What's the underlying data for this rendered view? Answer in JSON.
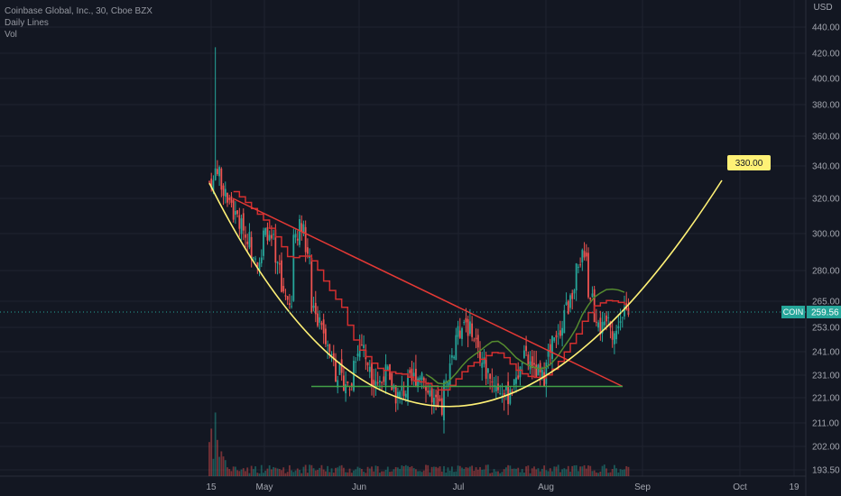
{
  "legend": {
    "title": "Coinbase Global, Inc., 30, Cboe BZX",
    "line2": "Daily Lines",
    "line3": "Vol"
  },
  "chart_data": {
    "type": "candlestick",
    "currency": "USD",
    "symbol": "COIN",
    "last_price": "259.56",
    "target_label": "330.00",
    "y_ticks": [
      "440.00",
      "420.00",
      "400.00",
      "380.00",
      "360.00",
      "340.00",
      "320.00",
      "300.00",
      "280.00",
      "265.00",
      "253.00",
      "241.00",
      "231.00",
      "221.00",
      "211.00",
      "202.00",
      "193.50"
    ],
    "x_ticks": [
      "15",
      "May",
      "Jun",
      "Jul",
      "Aug",
      "Sep",
      "Oct",
      "19"
    ],
    "price_range": [
      193.5,
      440
    ],
    "approx_closes": [
      330,
      338,
      325,
      318,
      310,
      305,
      298,
      290,
      285,
      300,
      296,
      282,
      270,
      262,
      300,
      305,
      290,
      262,
      255,
      248,
      240,
      232,
      228,
      226,
      240,
      245,
      236,
      230,
      228,
      232,
      226,
      222,
      224,
      228,
      230,
      232,
      224,
      218,
      216,
      226,
      240,
      250,
      256,
      252,
      246,
      236,
      232,
      228,
      224,
      222,
      226,
      232,
      238,
      236,
      232,
      230,
      240,
      246,
      252,
      262,
      270,
      280,
      290,
      268,
      258,
      252,
      256,
      250,
      256,
      260
    ],
    "colors": {
      "up": "#26a69a",
      "down": "#ef5350",
      "curve": "#fff176",
      "trendline": "#e53935",
      "support": "#43a047",
      "ma_red": "#d32f2f",
      "ma_green": "#558b2f",
      "price_label_bg": "#26a69a",
      "target_bg": "#fff176"
    }
  }
}
